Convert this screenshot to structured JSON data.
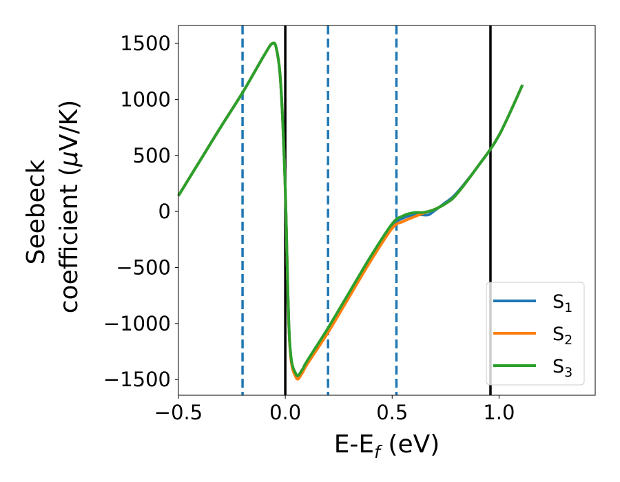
{
  "chart_data": {
    "type": "line",
    "title": "",
    "xlabel": {
      "main": "E-E",
      "sub": "f",
      "rest": " (eV)"
    },
    "ylabel": {
      "line1": "Seebeck",
      "line2_prefix": "coefficient  (",
      "mu": "μ",
      "line2_suffix": "V/K)"
    },
    "xlim": [
      -0.5,
      1.45
    ],
    "ylim": [
      -1640,
      1660
    ],
    "xticks": [
      {
        "value": -0.5,
        "label": "−0.5"
      },
      {
        "value": 0.0,
        "label": "0.0"
      },
      {
        "value": 0.5,
        "label": "0.5"
      },
      {
        "value": 1.0,
        "label": "1.0"
      }
    ],
    "yticks": [
      {
        "value": -1500,
        "label": "−1500"
      },
      {
        "value": -1000,
        "label": "−1000"
      },
      {
        "value": -500,
        "label": "−500"
      },
      {
        "value": 0,
        "label": "0"
      },
      {
        "value": 500,
        "label": "500"
      },
      {
        "value": 1000,
        "label": "1000"
      },
      {
        "value": 1500,
        "label": "1500"
      }
    ],
    "grid": false,
    "legend_position": "lower-right",
    "vlines_solid": [
      0.0,
      0.96
    ],
    "vlines_dashed": [
      -0.2,
      0.2,
      0.52
    ],
    "vline_solid_color": "#000000",
    "vline_dashed_color": "#1f77b4",
    "series": [
      {
        "name": "S",
        "sub": "1",
        "color": "#1f77b4",
        "x": [
          -0.5,
          -0.4,
          -0.3,
          -0.2,
          -0.1,
          -0.06,
          -0.04,
          -0.02,
          0.0,
          0.02,
          0.05,
          0.08,
          0.1,
          0.2,
          0.3,
          0.4,
          0.5,
          0.55,
          0.6,
          0.64,
          0.67,
          0.7,
          0.75,
          0.8,
          0.9,
          1.0,
          1.11
        ],
        "y": [
          140,
          450,
          760,
          1060,
          1390,
          1500,
          1440,
          1100,
          200,
          -1150,
          -1470,
          -1420,
          -1350,
          -1060,
          -740,
          -420,
          -130,
          -60,
          -30,
          -30,
          -30,
          10,
          80,
          160,
          400,
          680,
          1130
        ]
      },
      {
        "name": "S",
        "sub": "2",
        "color": "#ff7f0e",
        "x": [
          -0.5,
          -0.4,
          -0.3,
          -0.2,
          -0.1,
          -0.06,
          -0.04,
          -0.02,
          0.0,
          0.02,
          0.05,
          0.08,
          0.1,
          0.2,
          0.3,
          0.4,
          0.5,
          0.55,
          0.6,
          0.64,
          0.67,
          0.7,
          0.75,
          0.8,
          0.9,
          1.0,
          1.11
        ],
        "y": [
          140,
          450,
          760,
          1060,
          1390,
          1500,
          1440,
          1100,
          200,
          -1160,
          -1480,
          -1440,
          -1370,
          -1080,
          -760,
          -440,
          -150,
          -90,
          -50,
          -20,
          0,
          20,
          70,
          150,
          400,
          680,
          1130
        ]
      },
      {
        "name": "S",
        "sub": "3",
        "color": "#2ca02c",
        "x": [
          -0.5,
          -0.4,
          -0.3,
          -0.2,
          -0.1,
          -0.06,
          -0.04,
          -0.02,
          0.0,
          0.02,
          0.05,
          0.08,
          0.1,
          0.2,
          0.3,
          0.4,
          0.5,
          0.55,
          0.6,
          0.64,
          0.67,
          0.7,
          0.75,
          0.8,
          0.9,
          1.0,
          1.11
        ],
        "y": [
          140,
          450,
          760,
          1060,
          1390,
          1500,
          1440,
          1100,
          200,
          -1140,
          -1450,
          -1410,
          -1340,
          -1040,
          -720,
          -400,
          -110,
          -40,
          -10,
          -10,
          0,
          20,
          70,
          150,
          400,
          680,
          1130
        ]
      }
    ]
  }
}
